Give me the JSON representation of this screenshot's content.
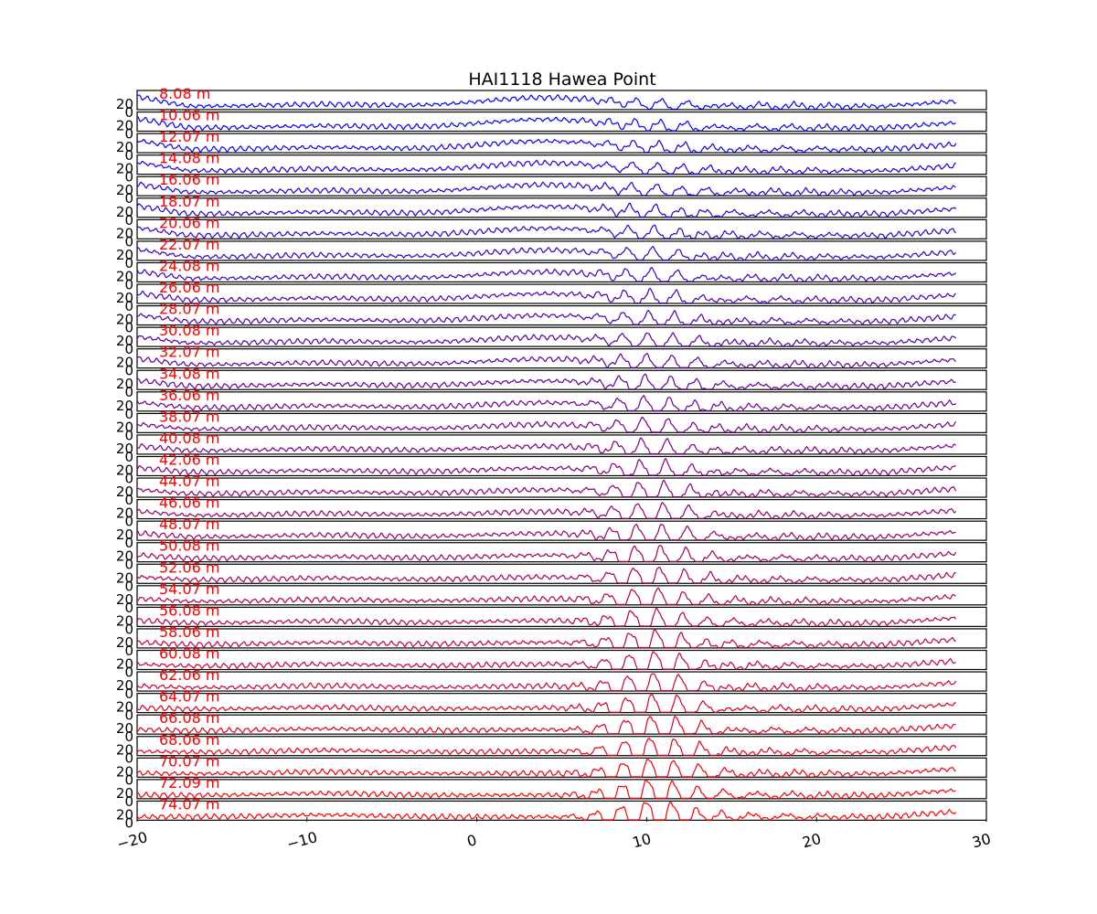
{
  "chart_data": {
    "type": "line",
    "title": "HAI1118   Hawea Point",
    "xlabel": "",
    "ylabel": "",
    "xlim": [
      -20,
      30
    ],
    "xticks": [
      "−20",
      "−10",
      "0",
      "10",
      "20",
      "30"
    ],
    "xtick_values": [
      -20,
      -10,
      0,
      10,
      20,
      30
    ],
    "yticks": [
      "20",
      "0"
    ],
    "grid": false,
    "legend": "none",
    "label_color": "#ff0000",
    "series_color_start": "#0000ff",
    "series_color_end": "#ff0000",
    "series": [
      {
        "label": "8.08 m"
      },
      {
        "label": "10.06 m"
      },
      {
        "label": "12.07 m"
      },
      {
        "label": "14.08 m"
      },
      {
        "label": "16.06 m"
      },
      {
        "label": "18.07 m"
      },
      {
        "label": "20.06 m"
      },
      {
        "label": "22.07 m"
      },
      {
        "label": "24.08 m"
      },
      {
        "label": "26.06 m"
      },
      {
        "label": "28.07 m"
      },
      {
        "label": "30.08 m"
      },
      {
        "label": "32.07 m"
      },
      {
        "label": "34.08 m"
      },
      {
        "label": "36.06 m"
      },
      {
        "label": "38.07 m"
      },
      {
        "label": "40.08 m"
      },
      {
        "label": "42.06 m"
      },
      {
        "label": "44.07 m"
      },
      {
        "label": "46.06 m"
      },
      {
        "label": "48.07 m"
      },
      {
        "label": "50.08 m"
      },
      {
        "label": "52.06 m"
      },
      {
        "label": "54.07 m"
      },
      {
        "label": "56.08 m"
      },
      {
        "label": "58.06 m"
      },
      {
        "label": "60.08 m"
      },
      {
        "label": "62.06 m"
      },
      {
        "label": "64.07 m"
      },
      {
        "label": "66.08 m"
      },
      {
        "label": "68.06 m"
      },
      {
        "label": "70.07 m"
      },
      {
        "label": "72.09 m"
      },
      {
        "label": "74.07 m"
      }
    ]
  }
}
